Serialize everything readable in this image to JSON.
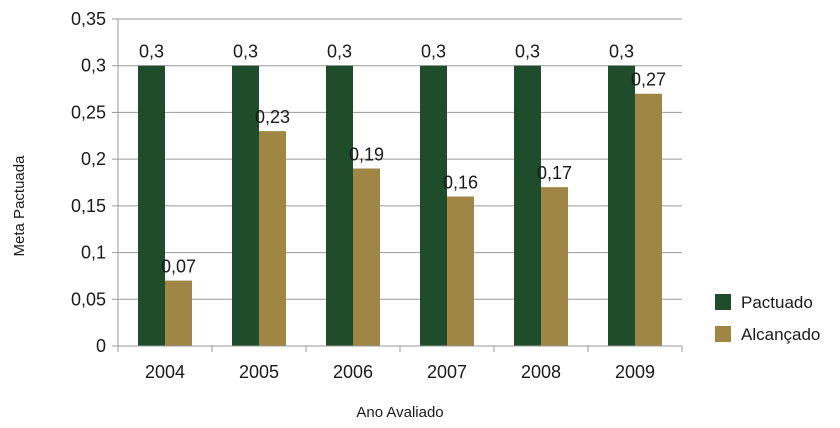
{
  "chart_data": {
    "type": "bar",
    "categories": [
      "2004",
      "2005",
      "2006",
      "2007",
      "2008",
      "2009"
    ],
    "series": [
      {
        "name": "Pactuado",
        "values": [
          0.3,
          0.3,
          0.3,
          0.3,
          0.3,
          0.3
        ],
        "labels": [
          "0,3",
          "0,3",
          "0,3",
          "0,3",
          "0,3",
          "0,3"
        ],
        "color": "#1f4d2b"
      },
      {
        "name": "Alcançado",
        "values": [
          0.07,
          0.23,
          0.19,
          0.16,
          0.17,
          0.27
        ],
        "labels": [
          "0,07",
          "0,23",
          "0,19",
          "0,16",
          "0,17",
          "0,27"
        ],
        "color": "#a08645"
      }
    ],
    "xlabel": "Ano Avaliado",
    "ylabel": "Meta Pactuada",
    "ylim": [
      0,
      0.35
    ],
    "yticks": [
      0,
      0.05,
      0.1,
      0.15,
      0.2,
      0.25,
      0.3,
      0.35
    ],
    "ytick_labels": [
      "0",
      "0,05",
      "0,1",
      "0,15",
      "0,2",
      "0,25",
      "0,3",
      "0,35"
    ],
    "grid": "horizontal",
    "legend_position": "right"
  }
}
